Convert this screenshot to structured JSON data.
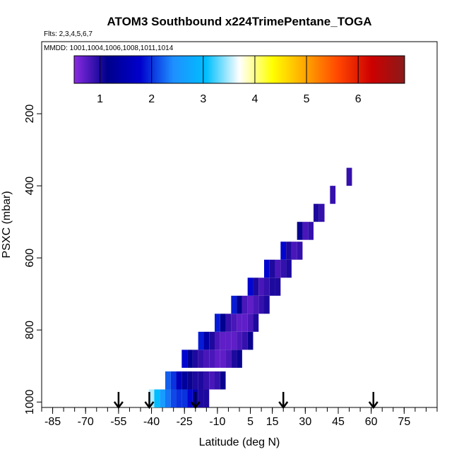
{
  "chart_data": {
    "type": "heatmap",
    "title": "ATOM3 Southbound x224TrimePentane_TOGA",
    "subtitle": "Flts: 2,3,4,5,6,7",
    "note": "MMDD: 1001,1004,1006,1008,1011,1014",
    "xlabel": "Latitude (deg N)",
    "ylabel": "PSXC (mbar)",
    "xlim": [
      -90,
      90
    ],
    "ylim": [
      1015,
      0
    ],
    "x_tick_labels": [
      "-85",
      "-70",
      "-55",
      "-40",
      "-25",
      "-10",
      "5",
      "15",
      "30",
      "45",
      "60",
      "75"
    ],
    "y_tick_labels": [
      "200",
      "400",
      "600",
      "800",
      "1000"
    ],
    "colorbar": {
      "range": [
        0.5,
        6.9
      ],
      "tick_labels": [
        "1",
        "2",
        "3",
        "4",
        "5",
        "6"
      ],
      "colors": [
        "#8a2be2",
        "#00008b",
        "#0000cd",
        "#1e90ff",
        "#00bfff",
        "#ffffff",
        "#ffff00",
        "#ffa500",
        "#ff4500",
        "#cd0000",
        "#8b1a1a"
      ]
    },
    "arrows_latitude": [
      -55,
      -41,
      -20,
      20,
      61
    ],
    "cells": [
      {
        "lat": -40,
        "p": 990,
        "v": 3.5
      },
      {
        "lat": -37.5,
        "p": 990,
        "v": 3.0
      },
      {
        "lat": -35,
        "p": 990,
        "v": 2.6
      },
      {
        "lat": -32.5,
        "p": 990,
        "v": 2.3
      },
      {
        "lat": -30,
        "p": 990,
        "v": 2.1
      },
      {
        "lat": -27.5,
        "p": 990,
        "v": 2.0
      },
      {
        "lat": -25,
        "p": 990,
        "v": 2.0
      },
      {
        "lat": -22.5,
        "p": 990,
        "v": 1.8
      },
      {
        "lat": -20,
        "p": 990,
        "v": 1.5
      },
      {
        "lat": -17.5,
        "p": 990,
        "v": 1.0
      },
      {
        "lat": -15,
        "p": 990,
        "v": 1.0
      },
      {
        "lat": -32.5,
        "p": 940,
        "v": 2.2
      },
      {
        "lat": -30,
        "p": 940,
        "v": 2.0
      },
      {
        "lat": -27.5,
        "p": 940,
        "v": 1.6
      },
      {
        "lat": -25,
        "p": 940,
        "v": 1.3
      },
      {
        "lat": -22.5,
        "p": 940,
        "v": 1.1
      },
      {
        "lat": -20,
        "p": 940,
        "v": 1.0
      },
      {
        "lat": -17.5,
        "p": 940,
        "v": 1.0
      },
      {
        "lat": -15,
        "p": 940,
        "v": 0.9
      },
      {
        "lat": -12.5,
        "p": 940,
        "v": 0.8
      },
      {
        "lat": -10,
        "p": 940,
        "v": 0.9
      },
      {
        "lat": -7.5,
        "p": 940,
        "v": 1.1
      },
      {
        "lat": -25,
        "p": 880,
        "v": 1.8
      },
      {
        "lat": -22.5,
        "p": 880,
        "v": 1.2
      },
      {
        "lat": -20,
        "p": 880,
        "v": 1.0
      },
      {
        "lat": -17.5,
        "p": 880,
        "v": 0.9
      },
      {
        "lat": -15,
        "p": 880,
        "v": 0.8
      },
      {
        "lat": -12.5,
        "p": 880,
        "v": 0.8
      },
      {
        "lat": -10,
        "p": 880,
        "v": 0.7
      },
      {
        "lat": -7.5,
        "p": 880,
        "v": 0.7
      },
      {
        "lat": -5,
        "p": 880,
        "v": 0.8
      },
      {
        "lat": -2.5,
        "p": 880,
        "v": 1.0
      },
      {
        "lat": 0,
        "p": 880,
        "v": 1.1
      },
      {
        "lat": -17.5,
        "p": 830,
        "v": 1.9
      },
      {
        "lat": -15,
        "p": 830,
        "v": 1.4
      },
      {
        "lat": -12.5,
        "p": 830,
        "v": 1.0
      },
      {
        "lat": -10,
        "p": 830,
        "v": 0.8
      },
      {
        "lat": -7.5,
        "p": 830,
        "v": 0.7
      },
      {
        "lat": -5,
        "p": 830,
        "v": 0.7
      },
      {
        "lat": -2.5,
        "p": 830,
        "v": 0.7
      },
      {
        "lat": 0,
        "p": 830,
        "v": 0.8
      },
      {
        "lat": 2.5,
        "p": 830,
        "v": 0.9
      },
      {
        "lat": 5,
        "p": 830,
        "v": 1.1
      },
      {
        "lat": -10,
        "p": 780,
        "v": 1.9
      },
      {
        "lat": -7.5,
        "p": 780,
        "v": 1.2
      },
      {
        "lat": -5,
        "p": 780,
        "v": 0.9
      },
      {
        "lat": -2.5,
        "p": 780,
        "v": 0.8
      },
      {
        "lat": 0,
        "p": 780,
        "v": 0.7
      },
      {
        "lat": 2.5,
        "p": 780,
        "v": 0.7
      },
      {
        "lat": 5,
        "p": 780,
        "v": 0.8
      },
      {
        "lat": 7.5,
        "p": 780,
        "v": 1.0
      },
      {
        "lat": -2.5,
        "p": 730,
        "v": 1.9
      },
      {
        "lat": 0,
        "p": 730,
        "v": 1.2
      },
      {
        "lat": 2.5,
        "p": 730,
        "v": 0.8
      },
      {
        "lat": 5,
        "p": 730,
        "v": 0.7
      },
      {
        "lat": 7.5,
        "p": 730,
        "v": 0.8
      },
      {
        "lat": 10,
        "p": 730,
        "v": 0.9
      },
      {
        "lat": 12.5,
        "p": 730,
        "v": 1.0
      },
      {
        "lat": 5,
        "p": 680,
        "v": 1.8
      },
      {
        "lat": 7.5,
        "p": 680,
        "v": 1.0
      },
      {
        "lat": 10,
        "p": 680,
        "v": 0.8
      },
      {
        "lat": 12.5,
        "p": 680,
        "v": 0.9
      },
      {
        "lat": 15,
        "p": 680,
        "v": 1.0
      },
      {
        "lat": 17.5,
        "p": 680,
        "v": 1.0
      },
      {
        "lat": 12.5,
        "p": 630,
        "v": 1.8
      },
      {
        "lat": 15,
        "p": 630,
        "v": 1.0
      },
      {
        "lat": 17.5,
        "p": 630,
        "v": 0.8
      },
      {
        "lat": 20,
        "p": 630,
        "v": 0.9
      },
      {
        "lat": 22.5,
        "p": 630,
        "v": 1.0
      },
      {
        "lat": 20,
        "p": 580,
        "v": 1.8
      },
      {
        "lat": 22.5,
        "p": 580,
        "v": 1.0
      },
      {
        "lat": 25,
        "p": 580,
        "v": 0.8
      },
      {
        "lat": 27.5,
        "p": 580,
        "v": 0.9
      },
      {
        "lat": 27.5,
        "p": 525,
        "v": 1.1
      },
      {
        "lat": 30,
        "p": 525,
        "v": 0.8
      },
      {
        "lat": 32.5,
        "p": 525,
        "v": 0.9
      },
      {
        "lat": 35,
        "p": 475,
        "v": 1.0
      },
      {
        "lat": 37.5,
        "p": 475,
        "v": 0.9
      },
      {
        "lat": 42.5,
        "p": 425,
        "v": 0.9
      },
      {
        "lat": 50,
        "p": 375,
        "v": 0.9
      }
    ],
    "cell_size": {
      "dlat": 2.5,
      "dp": 50
    }
  }
}
